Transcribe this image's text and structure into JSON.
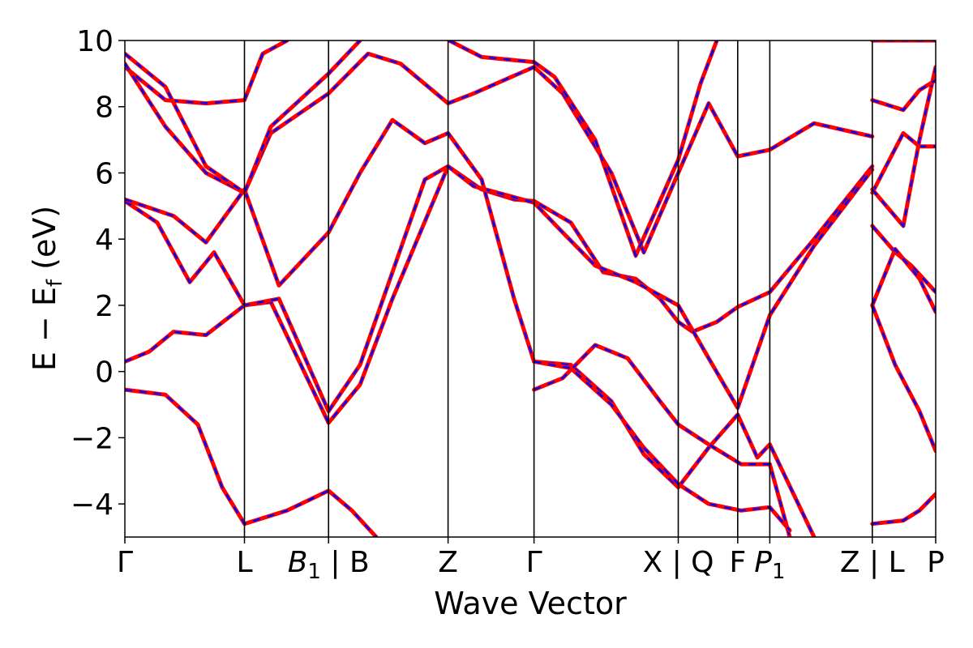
{
  "chart_data": {
    "type": "line",
    "xlabel": "Wave Vector",
    "ylabel": "E − E",
    "ylabel_subscript": "f",
    "ylabel_unit": "(eV)",
    "ylim": [
      -5,
      10
    ],
    "xlim": [
      0,
      1
    ],
    "yticks": [
      10,
      8,
      6,
      4,
      2,
      0,
      -2,
      -4
    ],
    "ytick_labels": [
      "10",
      "8",
      "6",
      "4",
      "2",
      "0",
      "−2",
      "−4"
    ],
    "kpoints": [
      {
        "x": 0.0,
        "label": "Γ"
      },
      {
        "x": 0.1475,
        "label": "L"
      },
      {
        "x": 0.2512,
        "label": "B1 | B",
        "main": "B",
        "sub": "1",
        "rest": " | B"
      },
      {
        "x": 0.3986,
        "label": "Z"
      },
      {
        "x": 0.5046,
        "label": "Γ"
      },
      {
        "x": 0.6825,
        "label": "X | Q"
      },
      {
        "x": 0.7558,
        "label": "F"
      },
      {
        "x": 0.7954,
        "label": "P1",
        "main": "P",
        "sub": "1",
        "rest": ""
      },
      {
        "x": 0.9218,
        "label": "Z | L"
      },
      {
        "x": 1.0,
        "label": "P"
      }
    ],
    "series": [
      {
        "values": [
          [
            0,
            -0.55
          ],
          [
            0.05,
            -0.7
          ],
          [
            0.09,
            -1.6
          ],
          [
            0.12,
            -3.5
          ],
          [
            0.1475,
            -4.6
          ],
          [
            0.2,
            -4.2
          ],
          [
            0.2512,
            -3.6
          ],
          [
            0.28,
            -4.2
          ],
          [
            0.31,
            -5
          ]
        ]
      },
      {
        "values": [
          [
            0,
            0.3
          ],
          [
            0.03,
            0.6
          ],
          [
            0.06,
            1.2
          ],
          [
            0.1,
            1.1
          ],
          [
            0.1475,
            2.0
          ],
          [
            0.18,
            2.1
          ],
          [
            0.2512,
            -1.55
          ],
          [
            0.29,
            -0.4
          ],
          [
            0.33,
            2.2
          ],
          [
            0.3986,
            6.2
          ],
          [
            0.44,
            5.5
          ],
          [
            0.48,
            5.2
          ],
          [
            0.5046,
            5.15
          ],
          [
            0.55,
            4.5
          ],
          [
            0.59,
            3.0
          ],
          [
            0.63,
            2.8
          ],
          [
            0.66,
            2.2
          ],
          [
            0.6825,
            1.5
          ],
          [
            0.7,
            1.2
          ],
          [
            0.73,
            1.5
          ],
          [
            0.7558,
            1.95
          ],
          [
            0.7954,
            2.4
          ],
          [
            0.85,
            4.0
          ],
          [
            0.9218,
            6.2
          ]
        ]
      },
      {
        "values": [
          [
            0,
            5.15
          ],
          [
            0.04,
            4.5
          ],
          [
            0.08,
            2.7
          ],
          [
            0.11,
            3.6
          ],
          [
            0.1475,
            2.0
          ],
          [
            0.19,
            2.2
          ],
          [
            0.2512,
            -1.2
          ],
          [
            0.29,
            0.2
          ],
          [
            0.33,
            3.0
          ],
          [
            0.37,
            5.8
          ],
          [
            0.3986,
            6.2
          ],
          [
            0.43,
            5.6
          ],
          [
            0.5046,
            5.1
          ],
          [
            0.54,
            4.2
          ],
          [
            0.58,
            3.2
          ],
          [
            0.63,
            2.7
          ],
          [
            0.6825,
            2.0
          ],
          [
            0.72,
            0.4
          ],
          [
            0.7558,
            -1.1
          ],
          [
            0.7954,
            1.7
          ],
          [
            0.85,
            3.8
          ],
          [
            0.9218,
            6.1
          ]
        ]
      },
      {
        "values": [
          [
            0,
            5.2
          ],
          [
            0.06,
            4.7
          ],
          [
            0.1,
            3.9
          ],
          [
            0.1475,
            5.5
          ],
          [
            0.19,
            2.6
          ],
          [
            0.2512,
            4.2
          ],
          [
            0.29,
            6.0
          ],
          [
            0.33,
            7.6
          ],
          [
            0.37,
            6.9
          ],
          [
            0.3986,
            7.2
          ],
          [
            0.44,
            5.8
          ],
          [
            0.48,
            2.2
          ],
          [
            0.5046,
            0.3
          ],
          [
            0.55,
            0.2
          ],
          [
            0.6,
            -0.9
          ],
          [
            0.64,
            -2.5
          ],
          [
            0.6825,
            -3.5
          ],
          [
            0.72,
            -2.3
          ],
          [
            0.7558,
            -1.3
          ],
          [
            0.78,
            -2.6
          ],
          [
            0.7954,
            -2.2
          ],
          [
            0.85,
            -5
          ]
        ]
      },
      {
        "values": [
          [
            0,
            9.2
          ],
          [
            0.05,
            8.2
          ],
          [
            0.1,
            8.1
          ],
          [
            0.1475,
            8.2
          ],
          [
            0.17,
            9.6
          ],
          [
            0.2,
            10
          ]
        ]
      },
      {
        "values": [
          [
            0,
            9.3
          ],
          [
            0.05,
            7.4
          ],
          [
            0.1,
            6.0
          ],
          [
            0.1475,
            5.4
          ],
          [
            0.18,
            7.2
          ],
          [
            0.2512,
            8.4
          ],
          [
            0.3,
            9.6
          ],
          [
            0.34,
            9.3
          ],
          [
            0.3986,
            8.1
          ],
          [
            0.43,
            8.4
          ],
          [
            0.5046,
            9.2
          ],
          [
            0.54,
            8.4
          ],
          [
            0.6,
            6.0
          ],
          [
            0.64,
            3.6
          ],
          [
            0.6825,
            6.0
          ],
          [
            0.72,
            8.1
          ],
          [
            0.7558,
            6.5
          ],
          [
            0.7954,
            6.7
          ],
          [
            0.85,
            7.5
          ],
          [
            0.9218,
            7.1
          ]
        ]
      },
      {
        "values": [
          [
            0,
            9.6
          ],
          [
            0.05,
            8.6
          ],
          [
            0.1,
            6.2
          ],
          [
            0.1475,
            5.4
          ],
          [
            0.18,
            7.4
          ],
          [
            0.2512,
            9.0
          ],
          [
            0.29,
            10
          ]
        ]
      },
      {
        "values": [
          [
            0.4,
            10
          ],
          [
            0.44,
            9.5
          ],
          [
            0.5046,
            9.35
          ],
          [
            0.53,
            8.9
          ],
          [
            0.58,
            7.0
          ],
          [
            0.63,
            3.5
          ],
          [
            0.6825,
            6.4
          ],
          [
            0.71,
            8.7
          ],
          [
            0.73,
            10
          ]
        ]
      },
      {
        "values": [
          [
            0.5046,
            -0.55
          ],
          [
            0.54,
            -0.2
          ],
          [
            0.58,
            0.8
          ],
          [
            0.62,
            0.4
          ],
          [
            0.66,
            -0.9
          ],
          [
            0.6825,
            -1.6
          ],
          [
            0.72,
            -2.2
          ],
          [
            0.76,
            -2.8
          ],
          [
            0.7954,
            -2.8
          ],
          [
            0.82,
            -5
          ]
        ]
      },
      {
        "values": [
          [
            0.5046,
            0.3
          ],
          [
            0.55,
            0.1
          ],
          [
            0.6,
            -1.0
          ],
          [
            0.64,
            -2.3
          ],
          [
            0.6825,
            -3.4
          ],
          [
            0.72,
            -4.0
          ],
          [
            0.76,
            -4.2
          ],
          [
            0.7954,
            -4.1
          ],
          [
            0.82,
            -4.8
          ]
        ]
      },
      {
        "values": [
          [
            0.9218,
            4.4
          ],
          [
            0.95,
            3.6
          ],
          [
            0.97,
            3.2
          ],
          [
            1.0,
            2.4
          ]
        ]
      },
      {
        "values": [
          [
            0.9218,
            2.0
          ],
          [
            0.95,
            3.7
          ],
          [
            0.98,
            2.8
          ],
          [
            1.0,
            1.8
          ]
        ]
      },
      {
        "values": [
          [
            0.9218,
            2.0
          ],
          [
            0.95,
            0.2
          ],
          [
            0.98,
            -1.2
          ],
          [
            1.0,
            -2.4
          ]
        ]
      },
      {
        "values": [
          [
            0.9218,
            5.4
          ],
          [
            0.96,
            7.2
          ],
          [
            0.98,
            6.8
          ],
          [
            1.0,
            6.8
          ]
        ]
      },
      {
        "values": [
          [
            0.9218,
            5.5
          ],
          [
            0.96,
            4.4
          ],
          [
            0.98,
            7.0
          ],
          [
            1.0,
            9.2
          ]
        ]
      },
      {
        "values": [
          [
            0.9218,
            8.2
          ],
          [
            0.96,
            7.9
          ],
          [
            0.98,
            8.5
          ],
          [
            1.0,
            8.8
          ]
        ]
      },
      {
        "values": [
          [
            0.9218,
            -4.6
          ],
          [
            0.96,
            -4.5
          ],
          [
            0.98,
            -4.2
          ],
          [
            1.0,
            -3.7
          ]
        ]
      },
      {
        "values": [
          [
            0.9218,
            10
          ],
          [
            0.95,
            10
          ],
          [
            1.0,
            10
          ]
        ]
      }
    ]
  }
}
